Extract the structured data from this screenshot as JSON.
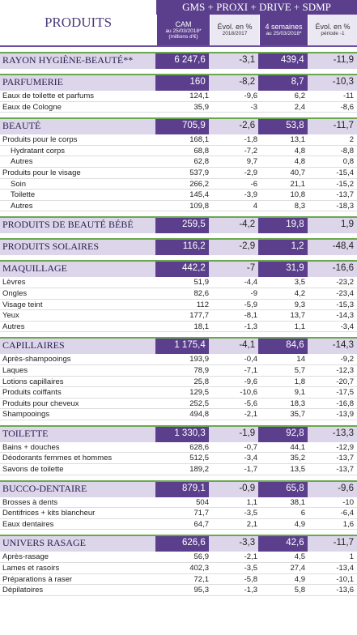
{
  "header": {
    "title": "PRODUITS",
    "group": "GMS + PROXI + DRIVE + SDMP",
    "columns": [
      [
        "CAM",
        "au 25/03/2018*",
        "(millions d'€)"
      ],
      [
        "Évol. en %",
        "2018/2017"
      ],
      [
        "4 semaines",
        "au 25/03/2018*"
      ],
      [
        "Évol. en %",
        "période -1"
      ]
    ]
  },
  "sections": [
    {
      "name": "RAYON HYGIÈNE-BEAUTÉ**",
      "values": [
        "6 247,6",
        "-3,1",
        "439,4",
        "-11,9"
      ],
      "rows": []
    },
    {
      "name": "PARFUMERIE",
      "values": [
        "160",
        "-8,2",
        "8,7",
        "-10,3"
      ],
      "rows": [
        {
          "label": "Eaux de toilette et parfums",
          "values": [
            "124,1",
            "-9,6",
            "6,2",
            "-11"
          ]
        },
        {
          "label": "Eaux de Cologne",
          "values": [
            "35,9",
            "-3",
            "2,4",
            "-8,6"
          ]
        }
      ]
    },
    {
      "name": "BEAUTÉ",
      "values": [
        "705,9",
        "-2,6",
        "53,8",
        "-11,7"
      ],
      "rows": [
        {
          "label": "Produits pour le corps",
          "values": [
            "168,1",
            "-1,8",
            "13,1",
            "2"
          ],
          "children": [
            {
              "label": "Hydratant corps",
              "values": [
                "68,8",
                "-7,2",
                "4,8",
                "-8,8"
              ]
            },
            {
              "label": "Autres",
              "values": [
                "62,8",
                "9,7",
                "4,8",
                "0,8"
              ]
            }
          ]
        },
        {
          "label": "Produits pour le visage",
          "values": [
            "537,9",
            "-2,9",
            "40,7",
            "-15,4"
          ],
          "children": [
            {
              "label": "Soin",
              "values": [
                "266,2",
                "-6",
                "21,1",
                "-15,2"
              ]
            },
            {
              "label": "Toilette",
              "values": [
                "145,4",
                "-3,9",
                "10,8",
                "-13,7"
              ]
            },
            {
              "label": "Autres",
              "values": [
                "109,8",
                "4",
                "8,3",
                "-18,3"
              ]
            }
          ]
        }
      ]
    },
    {
      "name": "PRODUITS DE BEAUTÉ BÉBÉ",
      "values": [
        "259,5",
        "-4,2",
        "19,8",
        "1,9"
      ],
      "rows": []
    },
    {
      "name": "PRODUITS SOLAIRES",
      "values": [
        "116,2",
        "-2,9",
        "1,2",
        "-48,4"
      ],
      "rows": []
    },
    {
      "name": "MAQUILLAGE",
      "values": [
        "442,2",
        "-7",
        "31,9",
        "-16,6"
      ],
      "rows": [
        {
          "label": "Lèvres",
          "values": [
            "51,9",
            "-4,4",
            "3,5",
            "-23,2"
          ]
        },
        {
          "label": "Ongles",
          "values": [
            "82,6",
            "-9",
            "4,2",
            "-23,4"
          ]
        },
        {
          "label": "Visage teint",
          "values": [
            "112",
            "-5,9",
            "9,3",
            "-15,3"
          ]
        },
        {
          "label": "Yeux",
          "values": [
            "177,7",
            "-8,1",
            "13,7",
            "-14,3"
          ]
        },
        {
          "label": "Autres",
          "values": [
            "18,1",
            "-1,3",
            "1,1",
            "-3,4"
          ]
        }
      ]
    },
    {
      "name": "CAPILLAIRES",
      "values": [
        "1 175,4",
        "-4,1",
        "84,6",
        "-14,3"
      ],
      "rows": [
        {
          "label": "Après-shampooings",
          "values": [
            "193,9",
            "-0,4",
            "14",
            "-9,2"
          ]
        },
        {
          "label": "Laques",
          "values": [
            "78,9",
            "-7,1",
            "5,7",
            "-12,3"
          ]
        },
        {
          "label": "Lotions capillaires",
          "values": [
            "25,8",
            "-9,6",
            "1,8",
            "-20,7"
          ]
        },
        {
          "label": "Produits coiffants",
          "values": [
            "129,5",
            "-10,6",
            "9,1",
            "-17,5"
          ]
        },
        {
          "label": "Produits pour cheveux",
          "values": [
            "252,5",
            "-5,6",
            "18,3",
            "-16,8"
          ]
        },
        {
          "label": "Shampooings",
          "values": [
            "494,8",
            "-2,1",
            "35,7",
            "-13,9"
          ]
        }
      ]
    },
    {
      "name": "TOILETTE",
      "values": [
        "1 330,3",
        "-1,9",
        "92,8",
        "-13,3"
      ],
      "rows": [
        {
          "label": "Bains + douches",
          "values": [
            "628,6",
            "-0,7",
            "44,1",
            "-12,9"
          ]
        },
        {
          "label": "Déodorants femmes et hommes",
          "values": [
            "512,5",
            "-3,4",
            "35,2",
            "-13,7"
          ]
        },
        {
          "label": "Savons de toilette",
          "values": [
            "189,2",
            "-1,7",
            "13,5",
            "-13,7"
          ]
        }
      ]
    },
    {
      "name": "BUCCO-DENTAIRE",
      "values": [
        "879,1",
        "-0,9",
        "65,8",
        "-9,6"
      ],
      "rows": [
        {
          "label": "Brosses à dents",
          "values": [
            "504",
            "1,1",
            "38,1",
            "-10"
          ]
        },
        {
          "label": "Dentifrices + kits blancheur",
          "values": [
            "71,7",
            "-3,5",
            "6",
            "-6,4"
          ]
        },
        {
          "label": "Eaux dentaires",
          "values": [
            "64,7",
            "2,1",
            "4,9",
            "1,6"
          ]
        }
      ]
    },
    {
      "name": "UNIVERS RASAGE",
      "values": [
        "626,6",
        "-3,3",
        "42,6",
        "-11,7"
      ],
      "rows": [
        {
          "label": "Après-rasage",
          "values": [
            "56,9",
            "-2,1",
            "4,5",
            "1"
          ]
        },
        {
          "label": "Lames et rasoirs",
          "values": [
            "402,3",
            "-3,5",
            "27,4",
            "-13,4"
          ]
        },
        {
          "label": "Préparations à raser",
          "values": [
            "72,1",
            "-5,8",
            "4,9",
            "-10,1"
          ]
        },
        {
          "label": "Dépilatoires",
          "values": [
            "95,3",
            "-1,3",
            "5,8",
            "-13,6"
          ]
        }
      ]
    }
  ]
}
